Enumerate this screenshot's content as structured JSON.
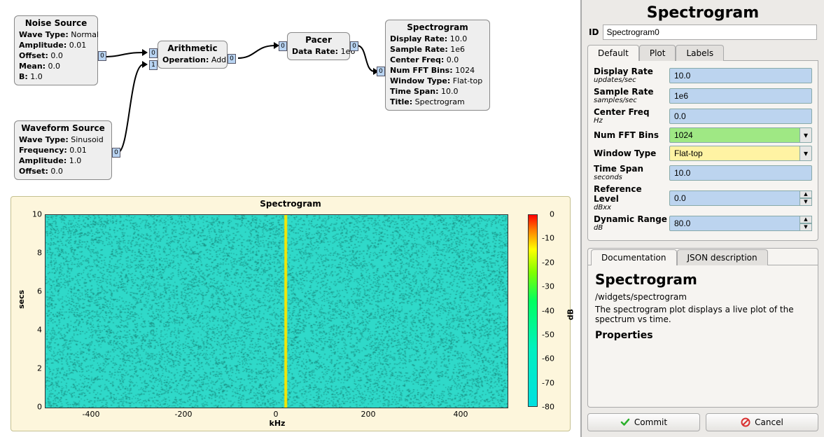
{
  "blocks": {
    "noise": {
      "title": "Noise Source",
      "props": [
        {
          "k": "Wave Type",
          "v": "Normal"
        },
        {
          "k": "Amplitude",
          "v": "0.01"
        },
        {
          "k": "Offset",
          "v": "0.0"
        },
        {
          "k": "Mean",
          "v": "0.0"
        },
        {
          "k": "B",
          "v": "1.0"
        }
      ]
    },
    "waveform": {
      "title": "Waveform Source",
      "props": [
        {
          "k": "Wave Type",
          "v": "Sinusoid"
        },
        {
          "k": "Frequency",
          "v": "0.01"
        },
        {
          "k": "Amplitude",
          "v": "1.0"
        },
        {
          "k": "Offset",
          "v": "0.0"
        }
      ]
    },
    "arith": {
      "title": "Arithmetic",
      "props": [
        {
          "k": "Operation",
          "v": "Add"
        }
      ]
    },
    "pacer": {
      "title": "Pacer",
      "props": [
        {
          "k": "Data Rate",
          "v": "1e6"
        }
      ]
    },
    "spectro": {
      "title": "Spectrogram",
      "props": [
        {
          "k": "Display Rate",
          "v": "10.0"
        },
        {
          "k": "Sample Rate",
          "v": "1e6"
        },
        {
          "k": "Center Freq",
          "v": "0.0"
        },
        {
          "k": "Num FFT Bins",
          "v": "1024"
        },
        {
          "k": "Window Type",
          "v": "Flat-top"
        },
        {
          "k": "Time Span",
          "v": "10.0"
        },
        {
          "k": "Title",
          "v": "Spectrogram"
        }
      ]
    }
  },
  "plot": {
    "title": "Spectrogram",
    "xaxis_label": "kHz",
    "yaxis_label": "secs",
    "cb_label": "dB",
    "xlim": [
      -500,
      500
    ],
    "xtick_step": 200,
    "ylim": [
      0,
      10
    ],
    "ytick_step": 2,
    "cblim": [
      -80,
      0
    ],
    "cbtick_step": 10,
    "bg_color": "#fdf6dc",
    "water_color": "#2fd9c9",
    "speckle_color": "#1a8c80",
    "line_freq_khz": 20,
    "line_color": "#f7e600"
  },
  "side": {
    "title": "Spectrogram",
    "id_label": "ID",
    "id_value": "Spectrogram0",
    "tabs": [
      "Default",
      "Plot",
      "Labels"
    ],
    "active_tab": 0,
    "params": [
      {
        "label": "Display Rate",
        "sub": "updates/sec",
        "value": "10.0",
        "kind": "text"
      },
      {
        "label": "Sample Rate",
        "sub": "samples/sec",
        "value": "1e6",
        "kind": "text"
      },
      {
        "label": "Center Freq",
        "sub": "Hz",
        "value": "0.0",
        "kind": "text"
      },
      {
        "label": "Num FFT Bins",
        "sub": "",
        "value": "1024",
        "kind": "combo",
        "color": "green"
      },
      {
        "label": "Window Type",
        "sub": "",
        "value": "Flat-top",
        "kind": "combo",
        "color": "yellow"
      },
      {
        "label": "Time Span",
        "sub": "seconds",
        "value": "10.0",
        "kind": "text"
      },
      {
        "label": "Reference Level",
        "sub": "dBxx",
        "value": "0.0",
        "kind": "spin"
      },
      {
        "label": "Dynamic Range",
        "sub": "dB",
        "value": "80.0",
        "kind": "spin"
      }
    ],
    "doc_tabs": [
      "Documentation",
      "JSON description"
    ],
    "doc_active": 0,
    "doc": {
      "h": "Spectrogram",
      "path": "/widgets/spectrogram",
      "desc": "The spectrogram plot displays a live plot of the spectrum vs time.",
      "h2": "Properties"
    },
    "buttons": {
      "commit": "Commit",
      "cancel": "Cancel"
    },
    "colors": {
      "commit_icon": "#2bb02b",
      "cancel_icon": "#d93030"
    }
  }
}
